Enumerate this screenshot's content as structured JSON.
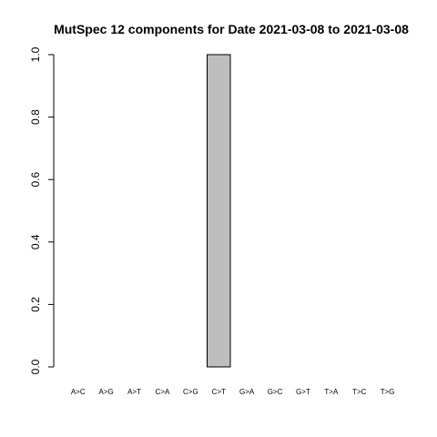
{
  "chart_data": {
    "type": "bar",
    "title": "MutSpec 12 components for Date 2021-03-08 to 2021-03-08",
    "xlabel": "",
    "ylabel": "",
    "categories": [
      "A>C",
      "A>G",
      "A>T",
      "C>A",
      "C>G",
      "C>T",
      "G>A",
      "G>C",
      "G>T",
      "T>A",
      "T>C",
      "T>G"
    ],
    "values": [
      0,
      0,
      0,
      0,
      0,
      1.0,
      0,
      0,
      0,
      0,
      0,
      0
    ],
    "ylim": [
      0,
      1.0
    ],
    "yticks": [
      "0.0",
      "0.2",
      "0.4",
      "0.6",
      "0.8",
      "1.0"
    ],
    "grid": false,
    "bar_color": "#bebebe",
    "bar_border_color": "#000000"
  }
}
